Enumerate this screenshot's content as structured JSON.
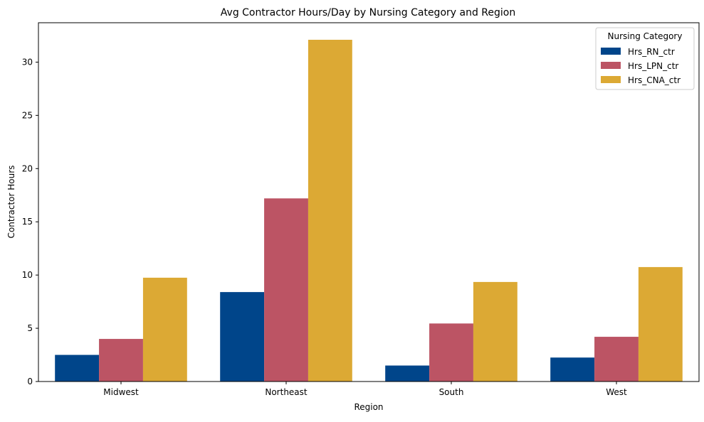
{
  "chart_data": {
    "type": "bar",
    "title": "Avg Contractor Hours/Day by Nursing Category and Region",
    "xlabel": "Region",
    "ylabel": "Contractor Hours",
    "categories": [
      "Midwest",
      "Northeast",
      "South",
      "West"
    ],
    "series": [
      {
        "name": "Hrs_RN_ctr",
        "values": [
          2.5,
          8.4,
          1.5,
          2.25
        ],
        "color": "#00458A"
      },
      {
        "name": "Hrs_LPN_ctr",
        "values": [
          4.0,
          17.2,
          5.45,
          4.2
        ],
        "color": "#BC5464"
      },
      {
        "name": "Hrs_CNA_ctr",
        "values": [
          9.75,
          32.1,
          9.35,
          10.75
        ],
        "color": "#DCA934"
      }
    ],
    "ylim": [
      0,
      33.7
    ],
    "yticks": [
      0,
      5,
      10,
      15,
      20,
      25,
      30
    ],
    "grid": false,
    "legend": {
      "title": "Nursing Category",
      "position": "top-right"
    }
  }
}
